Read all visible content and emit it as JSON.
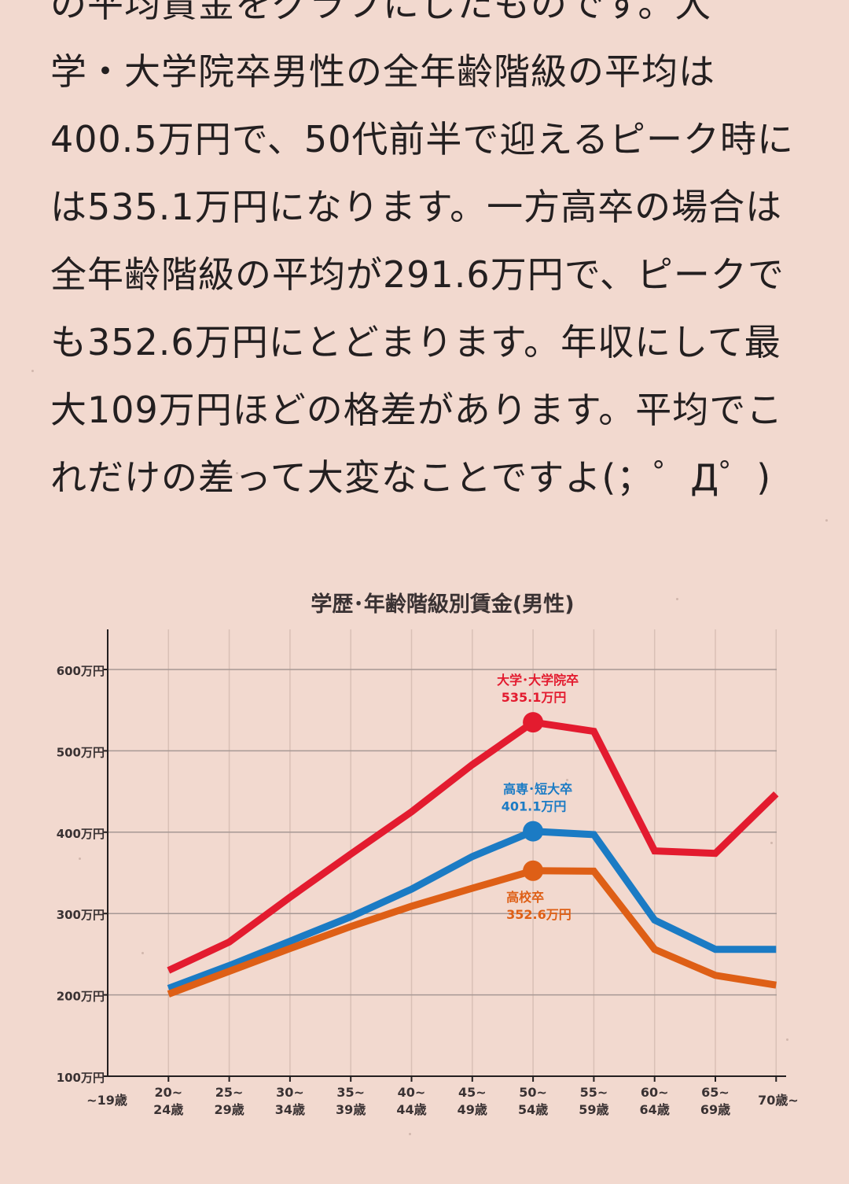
{
  "article": {
    "lines": [
      "の平均賃金をグラフにしたものです。大",
      "学・大学院卒男性の全年齢階級の平均は",
      "400.5万円で、50代前半で迎えるピーク時に",
      "は535.1万円になります。一方高卒の場合は",
      "全年齢階級の平均が291.6万円で、ピークで",
      "も352.6万円にとどまります。年収にして最",
      "大109万円ほどの格差があります。平均でこ",
      "れだけの差って大変なことですよ(；゜Д゜)"
    ]
  },
  "chart_data": {
    "type": "line",
    "title": "学歴･年齢階級別賃金(男性)",
    "xlabel": "",
    "ylabel": "",
    "ylim": [
      100,
      600
    ],
    "y_ticks": [
      {
        "value": 100,
        "label": "100万円"
      },
      {
        "value": 200,
        "label": "200万円"
      },
      {
        "value": 300,
        "label": "300万円"
      },
      {
        "value": 400,
        "label": "400万円"
      },
      {
        "value": 500,
        "label": "500万円"
      },
      {
        "value": 600,
        "label": "600万円"
      }
    ],
    "categories": [
      [
        "~19歳"
      ],
      [
        "20~",
        "24歳"
      ],
      [
        "25~",
        "29歳"
      ],
      [
        "30~",
        "34歳"
      ],
      [
        "35~",
        "39歳"
      ],
      [
        "40~",
        "44歳"
      ],
      [
        "45~",
        "49歳"
      ],
      [
        "50~",
        "54歳"
      ],
      [
        "55~",
        "59歳"
      ],
      [
        "60~",
        "64歳"
      ],
      [
        "65~",
        "69歳"
      ],
      [
        "70歳~"
      ]
    ],
    "grid": true,
    "series": [
      {
        "name": "大学･大学院卒",
        "color": "#e31b2f",
        "values": [
          null,
          230,
          265,
          320,
          373,
          425,
          483,
          535.1,
          524,
          377,
          374,
          447
        ],
        "highlight": {
          "index": 7,
          "label": "大学･大学院卒",
          "value_label": "535.1万円",
          "label_pos": "above"
        }
      },
      {
        "name": "高専･短大卒",
        "color": "#1b7bc4",
        "values": [
          null,
          208,
          236,
          266,
          296,
          330,
          370,
          401.1,
          397,
          292,
          256,
          256
        ],
        "highlight": {
          "index": 7,
          "label": "高専･短大卒",
          "value_label": "401.1万円",
          "label_pos": "above"
        }
      },
      {
        "name": "高校卒",
        "color": "#de5f16",
        "values": [
          null,
          201,
          229,
          257,
          284,
          309,
          331,
          352.6,
          352,
          256,
          224,
          212
        ],
        "highlight": {
          "index": 7,
          "label": "高校卒",
          "value_label": "352.6万円",
          "label_pos": "below"
        }
      }
    ],
    "colors": {
      "axis": "#231f20",
      "grid_h": "#a69894",
      "grid_v": "#d9c0b6",
      "text": "#3a3233"
    }
  }
}
